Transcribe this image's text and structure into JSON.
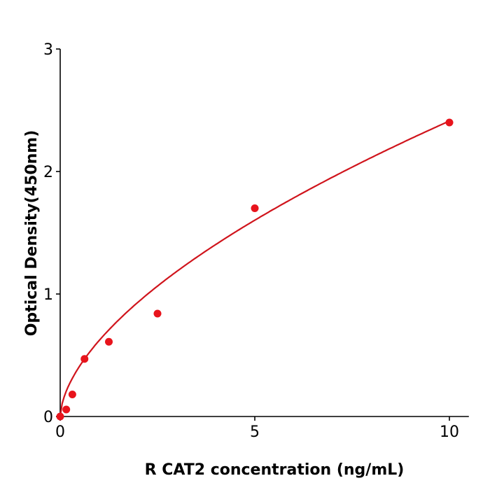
{
  "chart_data": {
    "type": "scatter",
    "title": "",
    "xlabel": "R  CAT2 concentration (ng/mL)",
    "ylabel": "Optical Density(450nm)",
    "xlim": [
      0,
      10.5
    ],
    "ylim": [
      0,
      3
    ],
    "x_ticks": [
      "0",
      "5",
      "10"
    ],
    "y_ticks": [
      "0",
      "1",
      "2",
      "3"
    ],
    "grid": false,
    "series": [
      {
        "x": [
          0,
          0.156,
          0.3125,
          0.625,
          1.25,
          2.5,
          5,
          10
        ],
        "y": [
          0.0,
          0.057,
          0.18,
          0.47,
          0.61,
          0.84,
          1.7,
          2.4
        ],
        "color": "#e8141c",
        "fit": "power curve"
      }
    ]
  }
}
